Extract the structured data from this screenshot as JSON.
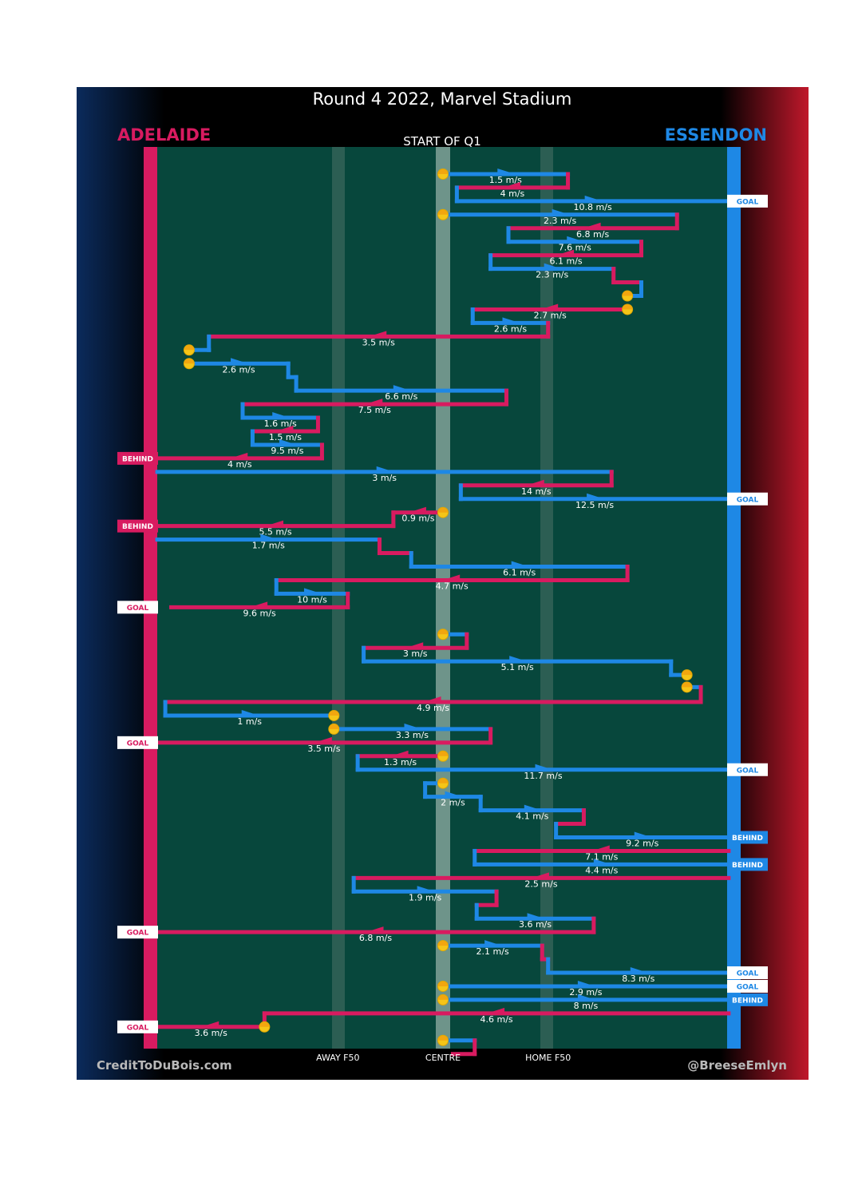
{
  "chart_data": {
    "type": "line",
    "title": "Round 4 2022, Marvel Stadium",
    "quarter_label": "START OF Q1",
    "teams": {
      "left": {
        "name": "ADELAIDE",
        "color": "#d81b60"
      },
      "right": {
        "name": "ESSENDON",
        "color": "#1e88e5"
      }
    },
    "x_axis": {
      "labels": [
        {
          "text": "AWAY F50",
          "x": -53
        },
        {
          "text": "CENTRE",
          "x": 0
        },
        {
          "text": "HOME F50",
          "x": 53
        }
      ],
      "xlim": [
        -144,
        144
      ]
    },
    "credits": {
      "left": "CreditToDuBois.com",
      "right": "@BreeseEmlyn"
    },
    "sequence_rows": 65,
    "chains": [
      {
        "segments": [
          {
            "team": "right",
            "row": 1,
            "x1": 0,
            "x2": 63,
            "label": "1.5 m/s"
          },
          {
            "team": "left",
            "row": 2,
            "x1": 63,
            "x2": 7,
            "label": "4 m/s"
          },
          {
            "team": "right",
            "row": 3,
            "x1": 7,
            "x2": 144,
            "label": "10.8 m/s"
          }
        ],
        "start": "bounce",
        "end": {
          "team": "right",
          "tag": "GOAL"
        }
      },
      {
        "segments": [
          {
            "team": "right",
            "row": 4,
            "x1": 0,
            "x2": 118,
            "label": "2.3 m/s"
          },
          {
            "team": "left",
            "row": 5,
            "x1": 118,
            "x2": 33,
            "label": "6.8 m/s"
          },
          {
            "team": "right",
            "row": 6,
            "x1": 33,
            "x2": 100,
            "label": "7.6 m/s"
          },
          {
            "team": "left",
            "row": 7,
            "x1": 100,
            "x2": 24,
            "label": "6.1 m/s"
          },
          {
            "team": "right",
            "row": 8,
            "x1": 24,
            "x2": 86,
            "label": "2.3 m/s"
          },
          {
            "team": "left",
            "row": 9,
            "x1": 86,
            "x2": 100,
            "label": ""
          },
          {
            "team": "right",
            "row": 10,
            "x1": 100,
            "x2": 93,
            "label": ""
          }
        ],
        "start": "bounce",
        "end": {
          "stop": true
        }
      },
      {
        "segments": [
          {
            "team": "left",
            "row": 11,
            "x1": 93,
            "x2": 15,
            "label": "2.7 m/s"
          },
          {
            "team": "right",
            "row": 12,
            "x1": 15,
            "x2": 53,
            "label": "2.6 m/s"
          },
          {
            "team": "left",
            "row": 13,
            "x1": 53,
            "x2": -118,
            "label": "3.5 m/s"
          },
          {
            "team": "right",
            "row": 14,
            "x1": -118,
            "x2": -128,
            "label": ""
          }
        ],
        "start": "stop",
        "end": {
          "stop": true
        }
      },
      {
        "segments": [
          {
            "team": "right",
            "row": 15,
            "x1": -128,
            "x2": -78,
            "label": "2.6 m/s"
          },
          {
            "team": "right",
            "row": 16,
            "x1": -78,
            "x2": -74,
            "label": ""
          },
          {
            "team": "right",
            "row": 17,
            "x1": -74,
            "x2": 32,
            "label": "6.6 m/s"
          },
          {
            "team": "left",
            "row": 18,
            "x1": 32,
            "x2": -101,
            "label": "7.5 m/s"
          },
          {
            "team": "right",
            "row": 19,
            "x1": -101,
            "x2": -63,
            "label": "1.6 m/s"
          },
          {
            "team": "left",
            "row": 20,
            "x1": -63,
            "x2": -96,
            "label": "1.5 m/s"
          },
          {
            "team": "right",
            "row": 21,
            "x1": -96,
            "x2": -61,
            "label": "9.5 m/s"
          },
          {
            "team": "left",
            "row": 22,
            "x1": -61,
            "x2": -144,
            "label": "4 m/s"
          }
        ],
        "start": "stop",
        "end": {
          "team": "left",
          "tag": "BEHIND"
        }
      },
      {
        "segments": [
          {
            "team": "right",
            "row": 23,
            "x1": -144,
            "x2": 85,
            "label": "3 m/s"
          },
          {
            "team": "left",
            "row": 24,
            "x1": 85,
            "x2": 9,
            "label": "14 m/s"
          },
          {
            "team": "right",
            "row": 25,
            "x1": 9,
            "x2": 144,
            "label": "12.5 m/s"
          }
        ],
        "start": "none",
        "end": {
          "team": "right",
          "tag": "GOAL"
        }
      },
      {
        "segments": [
          {
            "team": "left",
            "row": 26,
            "x1": 0,
            "x2": -25,
            "label": "0.9 m/s"
          },
          {
            "team": "left",
            "row": 27,
            "x1": -25,
            "x2": -144,
            "label": "5.5 m/s"
          }
        ],
        "start": "bounce",
        "end": {
          "team": "left",
          "tag": "BEHIND"
        }
      },
      {
        "segments": [
          {
            "team": "right",
            "row": 28,
            "x1": -144,
            "x2": -32,
            "label": "1.7 m/s"
          },
          {
            "team": "left",
            "row": 29,
            "x1": -32,
            "x2": -16,
            "label": ""
          },
          {
            "team": "right",
            "row": 30,
            "x1": -16,
            "x2": 93,
            "label": "6.1 m/s"
          },
          {
            "team": "left",
            "row": 31,
            "x1": 93,
            "x2": -84,
            "label": "4.7 m/s"
          },
          {
            "team": "right",
            "row": 32,
            "x1": -84,
            "x2": -48,
            "label": "10 m/s"
          },
          {
            "team": "left",
            "row": 33,
            "x1": -48,
            "x2": -137,
            "label": "9.6 m/s"
          }
        ],
        "start": "none",
        "end": {
          "team": "left",
          "tag": "GOAL"
        }
      },
      {
        "segments": [
          {
            "team": "right",
            "row": 35,
            "x1": 0,
            "x2": 12,
            "label": ""
          },
          {
            "team": "left",
            "row": 36,
            "x1": 12,
            "x2": -40,
            "label": "3 m/s"
          },
          {
            "team": "right",
            "row": 37,
            "x1": -40,
            "x2": 115,
            "label": "5.1 m/s"
          },
          {
            "team": "right",
            "row": 38,
            "x1": 115,
            "x2": 123,
            "label": ""
          }
        ],
        "start": "bounce",
        "end": {
          "stop": true
        }
      },
      {
        "segments": [
          {
            "team": "right",
            "row": 38.9,
            "x1": 123,
            "x2": 130,
            "label": ""
          },
          {
            "team": "left",
            "row": 40,
            "x1": 130,
            "x2": -140,
            "label": "4.9 m/s"
          },
          {
            "team": "right",
            "row": 41,
            "x1": -140,
            "x2": -55,
            "label": "1 m/s"
          }
        ],
        "start": "stop",
        "end": {
          "stop": true
        }
      },
      {
        "segments": [
          {
            "team": "right",
            "row": 42,
            "x1": -55,
            "x2": 24,
            "label": "3.3 m/s"
          },
          {
            "team": "left",
            "row": 43,
            "x1": 24,
            "x2": -144,
            "label": "3.5 m/s"
          }
        ],
        "start": "stop",
        "end": {
          "team": "left",
          "tag": "GOAL"
        }
      },
      {
        "segments": [
          {
            "team": "left",
            "row": 44,
            "x1": 0,
            "x2": -43,
            "label": "1.3 m/s"
          },
          {
            "team": "right",
            "row": 45,
            "x1": -43,
            "x2": 144,
            "label": "11.7 m/s"
          }
        ],
        "start": "bounce",
        "end": {
          "team": "right",
          "tag": "GOAL"
        }
      },
      {
        "segments": [
          {
            "team": "right",
            "row": 46,
            "x1": 0,
            "x2": -9,
            "label": ""
          },
          {
            "team": "right",
            "row": 47,
            "x1": -9,
            "x2": 19,
            "label": "2 m/s"
          },
          {
            "team": "right",
            "row": 48,
            "x1": 19,
            "x2": 71,
            "label": "4.1 m/s"
          },
          {
            "team": "left",
            "row": 49,
            "x1": 71,
            "x2": 57,
            "label": ""
          },
          {
            "team": "right",
            "row": 50,
            "x1": 57,
            "x2": 144,
            "label": "9.2 m/s"
          }
        ],
        "start": "bounce",
        "end": {
          "team": "right",
          "tag": "BEHIND"
        }
      },
      {
        "segments": [
          {
            "team": "left",
            "row": 51,
            "x1": 144,
            "x2": 16,
            "label": "7.1 m/s"
          },
          {
            "team": "right",
            "row": 52,
            "x1": 16,
            "x2": 144,
            "label": "4.4 m/s"
          }
        ],
        "start": "none",
        "end": {
          "team": "right",
          "tag": "BEHIND"
        }
      },
      {
        "segments": [
          {
            "team": "left",
            "row": 53,
            "x1": 144,
            "x2": -45,
            "label": "2.5 m/s"
          },
          {
            "team": "right",
            "row": 54,
            "x1": -45,
            "x2": 27,
            "label": "1.9 m/s"
          },
          {
            "team": "left",
            "row": 55,
            "x1": 27,
            "x2": 17,
            "label": ""
          },
          {
            "team": "right",
            "row": 56,
            "x1": 17,
            "x2": 76,
            "label": "3.6 m/s"
          },
          {
            "team": "left",
            "row": 57,
            "x1": 76,
            "x2": -144,
            "label": "6.8 m/s"
          }
        ],
        "start": "none",
        "end": {
          "team": "left",
          "tag": "GOAL"
        }
      },
      {
        "segments": [
          {
            "team": "right",
            "row": 58,
            "x1": 0,
            "x2": 50,
            "label": "2.1 m/s"
          },
          {
            "team": "left",
            "row": 59,
            "x1": 50,
            "x2": 53,
            "label": ""
          },
          {
            "team": "right",
            "row": 60,
            "x1": 53,
            "x2": 144,
            "label": "8.3 m/s"
          }
        ],
        "start": "bounce",
        "end": {
          "team": "right",
          "tag": "GOAL"
        }
      },
      {
        "segments": [
          {
            "team": "right",
            "row": 61,
            "x1": 0,
            "x2": 144,
            "label": "2.9 m/s"
          }
        ],
        "start": "bounce",
        "end": {
          "team": "right",
          "tag": "GOAL"
        }
      },
      {
        "segments": [
          {
            "team": "right",
            "row": 62,
            "x1": 0,
            "x2": 144,
            "label": "8 m/s"
          }
        ],
        "start": "bounce",
        "end": {
          "team": "right",
          "tag": "BEHIND"
        }
      },
      {
        "segments": [
          {
            "team": "left",
            "row": 63,
            "x1": 144,
            "x2": -90,
            "label": "4.6 m/s"
          },
          {
            "team": "left",
            "row": 64,
            "x1": -90,
            "x2": -144,
            "label": "3.6 m/s"
          }
        ],
        "start": "none",
        "end": {
          "team": "left",
          "tag": "GOAL",
          "stopAt": -90
        }
      },
      {
        "segments": [
          {
            "team": "right",
            "row": 65,
            "x1": 0,
            "x2": 16,
            "label": ""
          },
          {
            "team": "left",
            "row": 66,
            "x1": 16,
            "x2": 5,
            "label": ""
          }
        ],
        "start": "bounce",
        "end": {
          "none": true
        }
      }
    ]
  }
}
